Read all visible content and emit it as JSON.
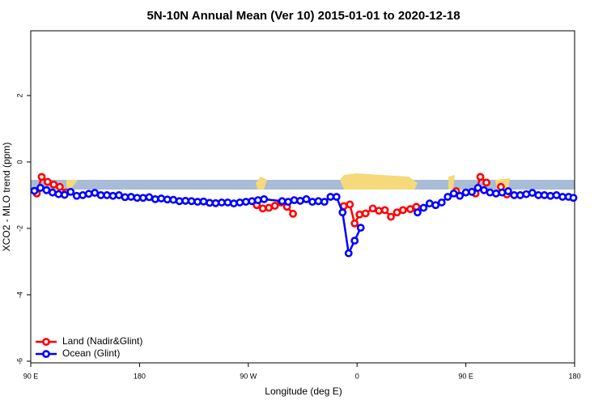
{
  "chart_data": {
    "type": "line",
    "title": "5N-10N Annual Mean (Ver 10)   2015-01-01 to 2020-12-18",
    "x_label": "Longitude (deg E)",
    "y_label": "XCO2 - MLO trend (ppm)",
    "xlim": [
      90,
      540
    ],
    "ylim": [
      -6.05,
      3.95
    ],
    "xticks": [
      {
        "value": 90,
        "label": "90 E"
      },
      180,
      {
        "value": 270,
        "label": "90 W"
      },
      {
        "value": 360,
        "label": "0"
      },
      {
        "value": 450,
        "label": "90 E"
      },
      {
        "value": 540,
        "label": "180"
      }
    ],
    "yticks": [
      -6,
      -4,
      -2,
      0,
      2
    ],
    "legend": "bottom-left",
    "series": [
      {
        "name": "Land (Nadir&Glint)",
        "color": "#ff0000",
        "x": [
          95,
          99,
          104,
          109,
          114,
          119,
          120,
          277,
          282,
          287,
          292,
          297,
          302,
          307,
          308,
          349,
          354,
          358,
          362,
          367,
          373,
          378,
          383,
          388,
          393,
          398,
          404,
          409,
          410,
          442,
          443,
          458,
          462,
          467,
          468,
          479,
          484
        ],
        "values": [
          -0.95,
          -0.45,
          -0.6,
          -0.68,
          -0.75,
          -0.92,
          null,
          -1.3,
          -1.4,
          -1.38,
          -1.32,
          -1.22,
          -1.35,
          -1.56,
          null,
          -1.33,
          -1.28,
          -1.85,
          -1.58,
          -1.55,
          -1.4,
          -1.47,
          -1.45,
          -1.65,
          -1.52,
          -1.45,
          -1.42,
          -1.35,
          null,
          -0.88,
          null,
          -0.95,
          -0.45,
          -0.62,
          null,
          -0.75,
          -0.98
        ]
      },
      {
        "name": "Ocean (Glint)",
        "color": "#0000ff",
        "x": [
          93,
          98,
          103,
          108,
          113,
          118,
          123,
          128,
          133,
          138,
          143,
          148,
          153,
          158,
          163,
          168,
          173,
          178,
          183,
          188,
          193,
          198,
          203,
          208,
          213,
          218,
          223,
          228,
          233,
          238,
          243,
          248,
          253,
          258,
          263,
          268,
          273,
          278,
          283,
          298,
          303,
          308,
          313,
          318,
          323,
          328,
          333,
          338,
          343,
          348,
          353,
          358,
          363,
          364,
          410,
          415,
          420,
          425,
          430,
          435,
          440,
          445,
          450,
          455,
          460,
          465,
          470,
          475,
          480,
          485,
          490,
          495,
          500,
          505,
          510,
          515,
          520,
          525,
          530,
          535,
          539
        ],
        "values": [
          -0.87,
          -0.78,
          -0.85,
          -0.92,
          -0.97,
          -0.99,
          -0.9,
          -1.02,
          -1.0,
          -0.96,
          -0.93,
          -1.0,
          -1.0,
          -1.02,
          -1.0,
          -1.06,
          -1.05,
          -1.08,
          -1.08,
          -1.06,
          -1.12,
          -1.1,
          -1.13,
          -1.14,
          -1.18,
          -1.17,
          -1.18,
          -1.2,
          -1.19,
          -1.23,
          -1.24,
          -1.22,
          -1.22,
          -1.25,
          -1.22,
          -1.2,
          -1.18,
          -1.15,
          -1.12,
          -1.18,
          -1.2,
          -1.15,
          -1.17,
          -1.12,
          -1.2,
          -1.18,
          -1.2,
          -1.05,
          -1.05,
          -1.52,
          -2.75,
          -2.37,
          -1.98,
          null,
          -1.52,
          -1.38,
          -1.25,
          -1.3,
          -1.22,
          -1.05,
          -0.95,
          -1.02,
          -0.92,
          -0.9,
          -0.78,
          -0.85,
          -0.92,
          -0.95,
          -0.92,
          -0.88,
          -1.0,
          -1.0,
          -0.97,
          -0.93,
          -1.0,
          -1.0,
          -1.02,
          -1.0,
          -1.05,
          -1.05,
          -1.08
        ]
      }
    ]
  }
}
